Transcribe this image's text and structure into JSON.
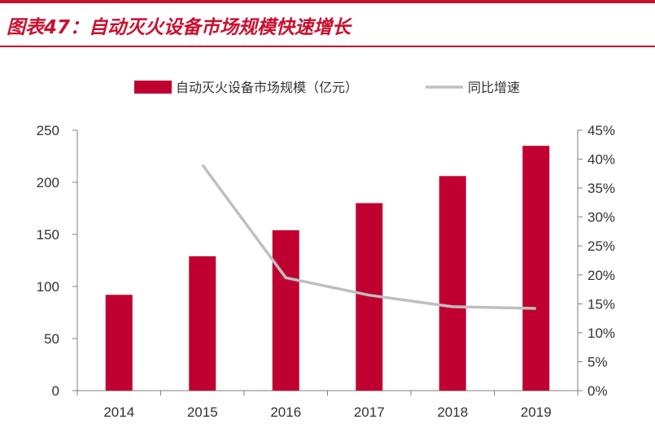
{
  "figure_title": "图表47：自动灭火设备市场规模快速增长",
  "colors": {
    "accent": "#c8102e",
    "bar": "#c00030",
    "line": "#bfbfbf",
    "axis": "#7f7f7f"
  },
  "chart_data": {
    "type": "bar",
    "categories": [
      "2014",
      "2015",
      "2016",
      "2017",
      "2018",
      "2019"
    ],
    "series": [
      {
        "name": "自动灭火设备市场规模（亿元）",
        "type": "bar",
        "axis": "left",
        "values": [
          92,
          129,
          154,
          180,
          206,
          235
        ]
      },
      {
        "name": "同比增速",
        "type": "line",
        "axis": "right",
        "values": [
          null,
          39,
          19.5,
          16.5,
          14.5,
          14.2
        ]
      }
    ],
    "y_left": {
      "min": 0,
      "max": 250,
      "step": 50,
      "ticks": [
        "0",
        "50",
        "100",
        "150",
        "200",
        "250"
      ]
    },
    "y_right": {
      "min": 0,
      "max": 45,
      "step": 5,
      "ticks": [
        "0%",
        "5%",
        "10%",
        "15%",
        "20%",
        "25%",
        "30%",
        "35%",
        "40%",
        "45%"
      ]
    },
    "legend": "top-center",
    "grid": false
  }
}
